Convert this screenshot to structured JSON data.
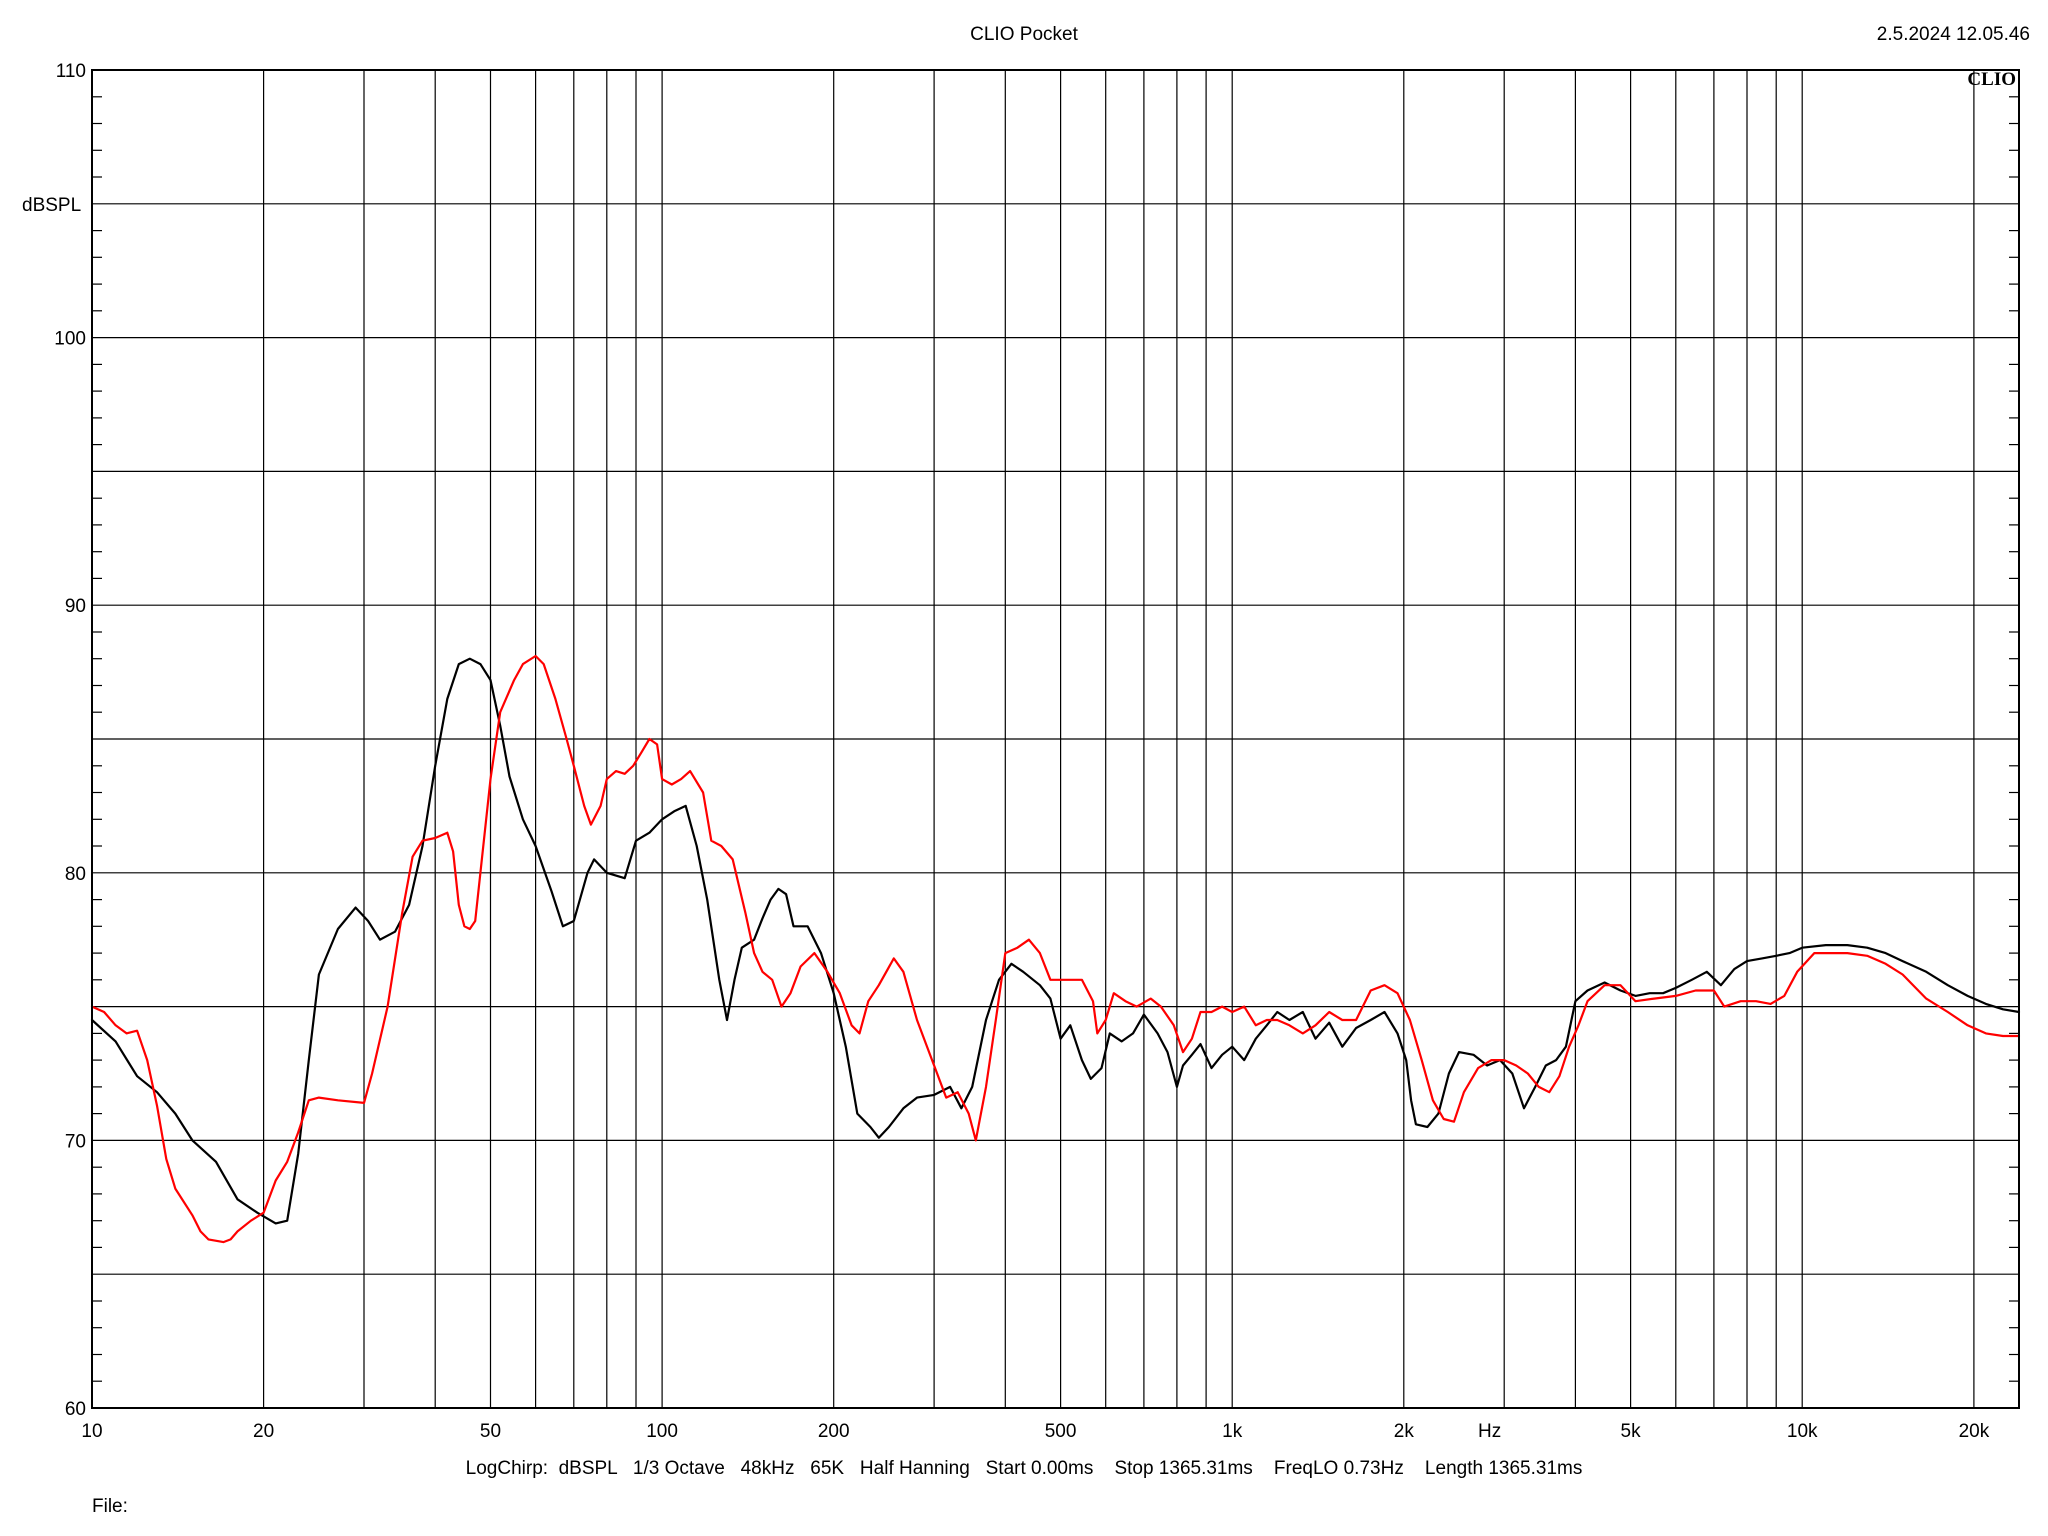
{
  "header": {
    "title": "CLIO Pocket",
    "timestamp": "2.5.2024 12.05.46",
    "brand": "CLIO"
  },
  "footer": {
    "params": "LogChirp:  dBSPL   1/3 Octave   48kHz   65K   Half Hanning   Start 0.00ms    Stop 1365.31ms    FreqLO 0.73Hz    Length 1365.31ms",
    "file_label": "File:"
  },
  "chart_data": {
    "type": "line",
    "title": "CLIO Pocket",
    "xlabel": "Hz",
    "ylabel": "dBSPL",
    "x_scale": "log",
    "xlim": [
      10,
      24000
    ],
    "ylim": [
      60,
      110
    ],
    "grid": true,
    "x_ticks": [
      10,
      20,
      50,
      100,
      200,
      500,
      1000,
      2000,
      5000,
      10000,
      20000
    ],
    "x_tick_labels": [
      "10",
      "20",
      "50",
      "100",
      "200",
      "500",
      "1k",
      "2k",
      "5k",
      "10k",
      "20k"
    ],
    "y_ticks": [
      60,
      70,
      80,
      90,
      100,
      110
    ],
    "y_tick_labels": [
      "60",
      "70",
      "80",
      "90",
      "100",
      "110"
    ],
    "series": [
      {
        "color": "#000000",
        "points": [
          [
            10,
            74.5
          ],
          [
            11,
            73.7
          ],
          [
            12,
            72.4
          ],
          [
            13,
            71.8
          ],
          [
            14,
            71.0
          ],
          [
            15,
            70.0
          ],
          [
            16.5,
            69.2
          ],
          [
            18,
            67.8
          ],
          [
            19.5,
            67.3
          ],
          [
            21,
            66.9
          ],
          [
            22,
            67.0
          ],
          [
            23,
            69.5
          ],
          [
            24,
            73.0
          ],
          [
            25,
            76.2
          ],
          [
            27,
            77.9
          ],
          [
            29,
            78.7
          ],
          [
            30.5,
            78.2
          ],
          [
            32,
            77.5
          ],
          [
            34,
            77.8
          ],
          [
            36,
            78.8
          ],
          [
            38,
            81.0
          ],
          [
            40,
            84.0
          ],
          [
            42,
            86.5
          ],
          [
            44,
            87.8
          ],
          [
            46,
            88.0
          ],
          [
            48,
            87.8
          ],
          [
            50,
            87.2
          ],
          [
            52,
            85.5
          ],
          [
            54,
            83.6
          ],
          [
            57,
            82.0
          ],
          [
            60,
            81.0
          ],
          [
            64,
            79.3
          ],
          [
            67,
            78.0
          ],
          [
            70,
            78.2
          ],
          [
            74,
            80.0
          ],
          [
            76,
            80.5
          ],
          [
            80,
            80.0
          ],
          [
            86,
            79.8
          ],
          [
            90,
            81.2
          ],
          [
            95,
            81.5
          ],
          [
            100,
            82.0
          ],
          [
            105,
            82.3
          ],
          [
            110,
            82.5
          ],
          [
            115,
            81.0
          ],
          [
            120,
            79.0
          ],
          [
            126,
            76.0
          ],
          [
            130,
            74.5
          ],
          [
            134,
            76.0
          ],
          [
            138,
            77.2
          ],
          [
            145,
            77.5
          ],
          [
            150,
            78.3
          ],
          [
            155,
            79.0
          ],
          [
            160,
            79.4
          ],
          [
            165,
            79.2
          ],
          [
            170,
            78.0
          ],
          [
            180,
            78.0
          ],
          [
            190,
            77.0
          ],
          [
            200,
            75.5
          ],
          [
            210,
            73.5
          ],
          [
            220,
            71.0
          ],
          [
            232,
            70.5
          ],
          [
            240,
            70.1
          ],
          [
            250,
            70.5
          ],
          [
            265,
            71.2
          ],
          [
            280,
            71.6
          ],
          [
            300,
            71.7
          ],
          [
            320,
            72.0
          ],
          [
            335,
            71.2
          ],
          [
            350,
            72.0
          ],
          [
            370,
            74.5
          ],
          [
            390,
            76.0
          ],
          [
            410,
            76.6
          ],
          [
            430,
            76.3
          ],
          [
            460,
            75.8
          ],
          [
            480,
            75.3
          ],
          [
            500,
            73.8
          ],
          [
            520,
            74.3
          ],
          [
            545,
            73.0
          ],
          [
            565,
            72.3
          ],
          [
            590,
            72.7
          ],
          [
            610,
            74.0
          ],
          [
            640,
            73.7
          ],
          [
            670,
            74.0
          ],
          [
            700,
            74.7
          ],
          [
            740,
            74.0
          ],
          [
            770,
            73.3
          ],
          [
            800,
            72.0
          ],
          [
            820,
            72.8
          ],
          [
            850,
            73.2
          ],
          [
            880,
            73.6
          ],
          [
            920,
            72.7
          ],
          [
            960,
            73.2
          ],
          [
            1000,
            73.5
          ],
          [
            1050,
            73.0
          ],
          [
            1100,
            73.8
          ],
          [
            1150,
            74.3
          ],
          [
            1200,
            74.8
          ],
          [
            1260,
            74.5
          ],
          [
            1330,
            74.8
          ],
          [
            1400,
            73.8
          ],
          [
            1480,
            74.4
          ],
          [
            1560,
            73.5
          ],
          [
            1650,
            74.2
          ],
          [
            1750,
            74.5
          ],
          [
            1850,
            74.8
          ],
          [
            1950,
            74.0
          ],
          [
            2020,
            73.0
          ],
          [
            2060,
            71.5
          ],
          [
            2100,
            70.6
          ],
          [
            2200,
            70.5
          ],
          [
            2300,
            71.0
          ],
          [
            2400,
            72.5
          ],
          [
            2500,
            73.3
          ],
          [
            2650,
            73.2
          ],
          [
            2800,
            72.8
          ],
          [
            2950,
            73.0
          ],
          [
            3100,
            72.5
          ],
          [
            3250,
            71.2
          ],
          [
            3400,
            72.0
          ],
          [
            3550,
            72.8
          ],
          [
            3700,
            73.0
          ],
          [
            3850,
            73.5
          ],
          [
            4000,
            75.2
          ],
          [
            4200,
            75.6
          ],
          [
            4500,
            75.9
          ],
          [
            4800,
            75.6
          ],
          [
            5100,
            75.4
          ],
          [
            5400,
            75.5
          ],
          [
            5700,
            75.5
          ],
          [
            6000,
            75.7
          ],
          [
            6400,
            76.0
          ],
          [
            6800,
            76.3
          ],
          [
            7200,
            75.8
          ],
          [
            7600,
            76.4
          ],
          [
            8000,
            76.7
          ],
          [
            8500,
            76.8
          ],
          [
            9000,
            76.9
          ],
          [
            9500,
            77.0
          ],
          [
            10000,
            77.2
          ],
          [
            11000,
            77.3
          ],
          [
            12000,
            77.3
          ],
          [
            13000,
            77.2
          ],
          [
            14000,
            77.0
          ],
          [
            15000,
            76.7
          ],
          [
            16500,
            76.3
          ],
          [
            18000,
            75.8
          ],
          [
            19500,
            75.4
          ],
          [
            21000,
            75.1
          ],
          [
            22500,
            74.9
          ],
          [
            24000,
            74.8
          ]
        ]
      },
      {
        "color": "#ff0000",
        "points": [
          [
            10,
            75.0
          ],
          [
            10.5,
            74.8
          ],
          [
            11,
            74.3
          ],
          [
            11.5,
            74.0
          ],
          [
            12,
            74.1
          ],
          [
            12.5,
            73.0
          ],
          [
            13,
            71.3
          ],
          [
            13.5,
            69.3
          ],
          [
            14,
            68.2
          ],
          [
            15,
            67.2
          ],
          [
            15.5,
            66.6
          ],
          [
            16,
            66.3
          ],
          [
            17,
            66.2
          ],
          [
            17.5,
            66.3
          ],
          [
            18,
            66.6
          ],
          [
            19,
            67.0
          ],
          [
            20,
            67.3
          ],
          [
            21,
            68.5
          ],
          [
            22,
            69.2
          ],
          [
            23,
            70.3
          ],
          [
            24,
            71.5
          ],
          [
            25,
            71.6
          ],
          [
            27,
            71.5
          ],
          [
            30,
            71.4
          ],
          [
            31,
            72.5
          ],
          [
            33,
            75.0
          ],
          [
            35,
            78.5
          ],
          [
            36.5,
            80.6
          ],
          [
            38,
            81.2
          ],
          [
            40,
            81.3
          ],
          [
            42,
            81.5
          ],
          [
            43,
            80.8
          ],
          [
            44,
            78.8
          ],
          [
            45,
            78.0
          ],
          [
            46,
            77.9
          ],
          [
            47,
            78.2
          ],
          [
            48,
            80.0
          ],
          [
            50,
            83.5
          ],
          [
            52,
            86.0
          ],
          [
            55,
            87.2
          ],
          [
            57,
            87.8
          ],
          [
            60,
            88.1
          ],
          [
            62,
            87.8
          ],
          [
            65,
            86.5
          ],
          [
            68,
            85.0
          ],
          [
            70,
            84.0
          ],
          [
            73,
            82.5
          ],
          [
            75,
            81.8
          ],
          [
            78,
            82.5
          ],
          [
            80,
            83.5
          ],
          [
            83,
            83.8
          ],
          [
            86,
            83.7
          ],
          [
            89,
            84.0
          ],
          [
            92,
            84.5
          ],
          [
            95,
            85.0
          ],
          [
            98,
            84.8
          ],
          [
            100,
            83.5
          ],
          [
            104,
            83.3
          ],
          [
            108,
            83.5
          ],
          [
            112,
            83.8
          ],
          [
            118,
            83.0
          ],
          [
            122,
            81.2
          ],
          [
            127,
            81.0
          ],
          [
            133,
            80.5
          ],
          [
            140,
            78.5
          ],
          [
            145,
            77.0
          ],
          [
            150,
            76.3
          ],
          [
            156,
            76.0
          ],
          [
            162,
            75.0
          ],
          [
            168,
            75.5
          ],
          [
            175,
            76.5
          ],
          [
            185,
            77.0
          ],
          [
            195,
            76.3
          ],
          [
            205,
            75.5
          ],
          [
            215,
            74.3
          ],
          [
            222,
            74.0
          ],
          [
            230,
            75.2
          ],
          [
            240,
            75.8
          ],
          [
            255,
            76.8
          ],
          [
            265,
            76.3
          ],
          [
            280,
            74.5
          ],
          [
            300,
            72.8
          ],
          [
            315,
            71.6
          ],
          [
            330,
            71.8
          ],
          [
            345,
            71.0
          ],
          [
            355,
            70.0
          ],
          [
            370,
            72.0
          ],
          [
            385,
            74.5
          ],
          [
            400,
            77.0
          ],
          [
            420,
            77.2
          ],
          [
            440,
            77.5
          ],
          [
            460,
            77.0
          ],
          [
            480,
            76.0
          ],
          [
            510,
            76.0
          ],
          [
            545,
            76.0
          ],
          [
            570,
            75.2
          ],
          [
            580,
            74.0
          ],
          [
            600,
            74.5
          ],
          [
            620,
            75.5
          ],
          [
            650,
            75.2
          ],
          [
            680,
            75.0
          ],
          [
            720,
            75.3
          ],
          [
            750,
            75.0
          ],
          [
            790,
            74.3
          ],
          [
            820,
            73.3
          ],
          [
            850,
            73.8
          ],
          [
            880,
            74.8
          ],
          [
            920,
            74.8
          ],
          [
            960,
            75.0
          ],
          [
            1000,
            74.8
          ],
          [
            1050,
            75.0
          ],
          [
            1100,
            74.3
          ],
          [
            1150,
            74.5
          ],
          [
            1200,
            74.5
          ],
          [
            1260,
            74.3
          ],
          [
            1330,
            74.0
          ],
          [
            1400,
            74.3
          ],
          [
            1480,
            74.8
          ],
          [
            1560,
            74.5
          ],
          [
            1650,
            74.5
          ],
          [
            1750,
            75.6
          ],
          [
            1850,
            75.8
          ],
          [
            1950,
            75.5
          ],
          [
            2050,
            74.5
          ],
          [
            2150,
            73.0
          ],
          [
            2250,
            71.5
          ],
          [
            2350,
            70.8
          ],
          [
            2450,
            70.7
          ],
          [
            2550,
            71.8
          ],
          [
            2700,
            72.7
          ],
          [
            2850,
            73.0
          ],
          [
            3000,
            73.0
          ],
          [
            3150,
            72.8
          ],
          [
            3300,
            72.5
          ],
          [
            3450,
            72.0
          ],
          [
            3600,
            71.8
          ],
          [
            3750,
            72.4
          ],
          [
            3900,
            73.5
          ],
          [
            4050,
            74.3
          ],
          [
            4200,
            75.2
          ],
          [
            4500,
            75.8
          ],
          [
            4800,
            75.8
          ],
          [
            5100,
            75.2
          ],
          [
            5500,
            75.3
          ],
          [
            6000,
            75.4
          ],
          [
            6500,
            75.6
          ],
          [
            7000,
            75.6
          ],
          [
            7300,
            75.0
          ],
          [
            7800,
            75.2
          ],
          [
            8300,
            75.2
          ],
          [
            8800,
            75.1
          ],
          [
            9300,
            75.4
          ],
          [
            9800,
            76.3
          ],
          [
            10500,
            77.0
          ],
          [
            11000,
            77.0
          ],
          [
            12000,
            77.0
          ],
          [
            13000,
            76.9
          ],
          [
            14000,
            76.6
          ],
          [
            15000,
            76.2
          ],
          [
            16500,
            75.3
          ],
          [
            18000,
            74.8
          ],
          [
            19500,
            74.3
          ],
          [
            21000,
            74.0
          ],
          [
            22500,
            73.9
          ],
          [
            24000,
            73.9
          ]
        ]
      }
    ]
  }
}
